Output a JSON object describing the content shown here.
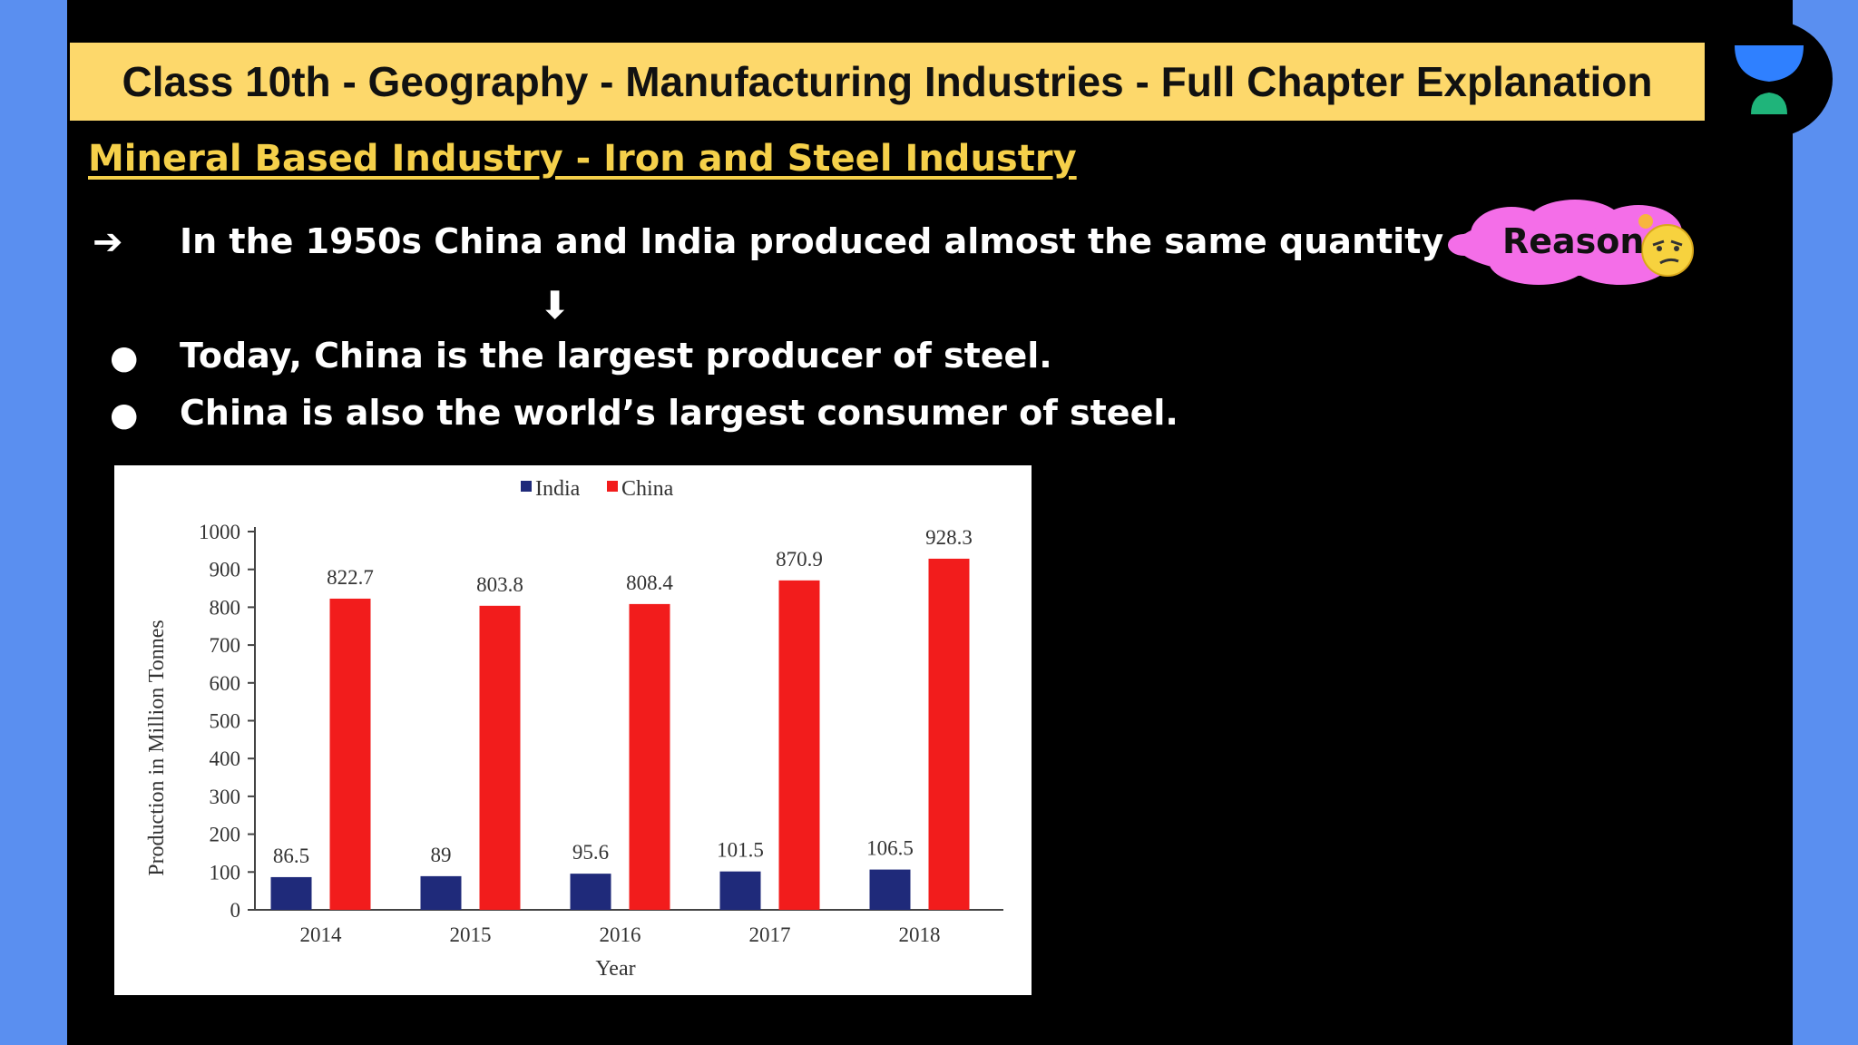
{
  "header": {
    "title": "Class 10th - Geography - Manufacturing Industries - Full Chapter Explanation"
  },
  "section": {
    "subtitle": "Mineral Based Industry - Iron and Steel Industry"
  },
  "points": {
    "arrow_text": "In the 1950s China and India produced almost the same quantity of steel.",
    "bullets": [
      "Today, China is the largest producer of steel.",
      "China is also the world’s largest consumer of steel."
    ]
  },
  "badge": {
    "label": "Reason"
  },
  "icons": {
    "arrow": "right-arrow-icon",
    "down": "down-arrow-icon",
    "emoji": "thinking-face-icon",
    "logo": "hourglass-logo-icon"
  },
  "colors": {
    "banner": "#fdd86b",
    "subtitle": "#f5d04a",
    "india": "#1f2a7a",
    "china": "#f21c1c",
    "cloud": "#f46ee8"
  },
  "chart_data": {
    "type": "bar",
    "categories": [
      "2014",
      "2015",
      "2016",
      "2017",
      "2018"
    ],
    "series": [
      {
        "name": "India",
        "values": [
          86.5,
          89,
          95.6,
          101.5,
          106.5
        ],
        "labels": [
          "86.5",
          "89",
          "95.6",
          "101.5",
          "106.5"
        ]
      },
      {
        "name": "China",
        "values": [
          822.7,
          803.8,
          808.4,
          870.9,
          928.3
        ],
        "labels": [
          "822.7",
          "803.8",
          "808.4",
          "870.9",
          "928.3"
        ]
      }
    ],
    "title": "",
    "xlabel": "Year",
    "ylabel": "Production in Million Tonnes",
    "ylim": [
      0,
      1000
    ],
    "yticks": [
      "0",
      "100",
      "200",
      "300",
      "400",
      "500",
      "600",
      "700",
      "800",
      "900",
      "1000"
    ],
    "legend": "top",
    "grid": false
  }
}
